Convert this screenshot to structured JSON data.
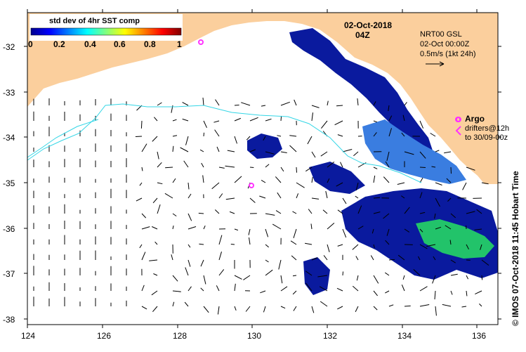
{
  "map": {
    "title_date": "02-Oct-2018",
    "title_time": "04Z",
    "colorbar": {
      "title": "std dev of 4hr SST comp",
      "ticks": [
        "0",
        "0.2",
        "0.4",
        "0.6",
        "0.8",
        "1"
      ],
      "colors": [
        "#00008f",
        "#0000ff",
        "#0080ff",
        "#00ffff",
        "#80ff80",
        "#ffff00",
        "#ff8000",
        "#ff0000",
        "#800000"
      ]
    },
    "current_source": {
      "line1": "NRT00 GSL",
      "line2": "02-Oct 00:00Z",
      "line3": "0.5m/s (1kt 24h)"
    },
    "argo": {
      "label": "Argo",
      "line2": "drifters@12h",
      "line3": "to 30/09-00z"
    },
    "credit": "© IMOS 07-Oct-2018 11:45 Hobart Time",
    "x_ticks": [
      "124",
      "126",
      "128",
      "130",
      "132",
      "134",
      "136"
    ],
    "y_ticks": [
      "-32",
      "-33",
      "-34",
      "-35",
      "-36",
      "-37",
      "-38"
    ],
    "colors": {
      "land": "#fbcf9d",
      "contour": "#33d6e6",
      "argo": "#ff33ff",
      "sst_low": "#0a1a9e",
      "sst_mid": "#3a7de0",
      "sst_high": "#22c36a"
    }
  }
}
